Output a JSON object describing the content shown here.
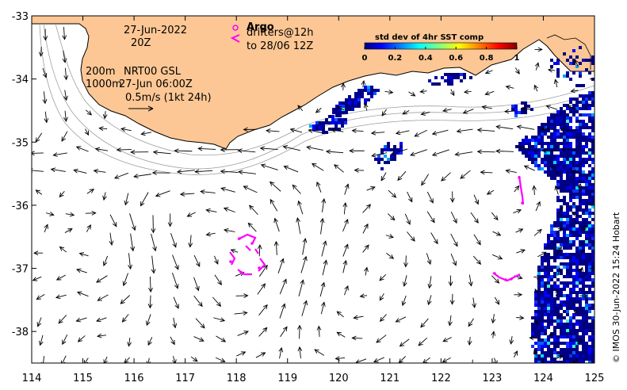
{
  "map": {
    "xlim": [
      114,
      125
    ],
    "ylim": [
      -38.5,
      -33
    ],
    "x_ticks": [
      "114",
      "115",
      "116",
      "117",
      "118",
      "119",
      "120",
      "121",
      "122",
      "123",
      "124",
      "125"
    ],
    "y_ticks": [
      "-33",
      "-34",
      "-35",
      "-36",
      "-37",
      "-38"
    ],
    "land_color": "#fcc794",
    "arrow_color": "#000000",
    "contour_color": "#9e9e9e",
    "argo_color": "#ff00ff"
  },
  "annotations": {
    "date": "27-Jun-2022",
    "time": "20Z",
    "depth_200": "200m",
    "product": "NRT00 GSL",
    "depth_1000": "1000m",
    "product_time": "27-Jun 06:00Z",
    "scale": "0.5m/s (1kt 24h)",
    "argo_label": "Argo",
    "drifters_label": "drifters@12h",
    "drifters_to": "to 28/06 12Z",
    "credit": "© IMOS 30-Jun-2022 15:24 Hobart"
  },
  "colorbar": {
    "title": "std dev of 4hr SST comp",
    "ticks": [
      "0",
      "0.2",
      "0.4",
      "0.6",
      "0.8",
      "1"
    ],
    "colormap": "jet"
  }
}
